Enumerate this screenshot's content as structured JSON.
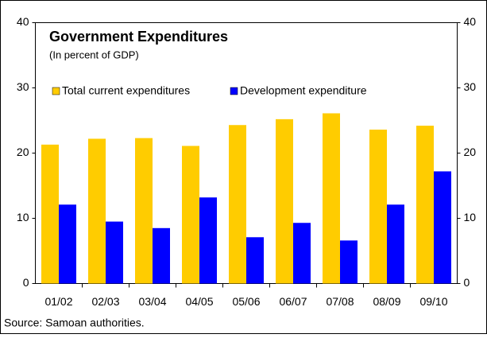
{
  "chart_data": {
    "type": "bar",
    "title": "Government Expenditures",
    "subtitle": "(In percent of GDP)",
    "source": "Source: Samoan authorities.",
    "categories": [
      "01/02",
      "02/03",
      "03/04",
      "04/05",
      "05/06",
      "06/07",
      "07/08",
      "08/09",
      "09/10"
    ],
    "series": [
      {
        "name": "Total current expenditures",
        "color": "#ffcc00",
        "values": [
          21.3,
          22.2,
          22.3,
          21.1,
          24.3,
          25.2,
          26.1,
          23.6,
          24.2
        ]
      },
      {
        "name": "Development expenditure",
        "color": "#0000ff",
        "values": [
          12.1,
          9.5,
          8.5,
          13.2,
          7.1,
          9.3,
          6.6,
          12.1,
          17.2
        ]
      }
    ],
    "ylim": [
      0,
      40
    ],
    "yticks": [
      0,
      10,
      20,
      30,
      40
    ],
    "y2lim": [
      0,
      40
    ],
    "y2ticks": [
      0,
      10,
      20,
      30,
      40
    ]
  }
}
